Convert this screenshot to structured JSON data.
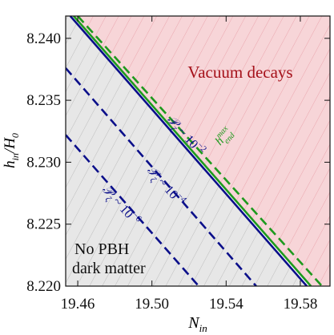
{
  "chart_data": {
    "type": "line",
    "xlabel": {
      "main": "N",
      "sub": "in"
    },
    "ylabel": {
      "main": "h",
      "sub": "in",
      "rest": "/H",
      "sub2": "0"
    },
    "xlim": [
      19.4535,
      19.596
    ],
    "ylim": [
      8.22,
      8.2418
    ],
    "xticks": [
      19.46,
      {
        "value": 19.5,
        "label": "19.50"
      },
      19.54,
      19.58
    ],
    "yticks": [
      {
        "value": 8.22,
        "label": "8.220"
      },
      8.225,
      {
        "value": 8.23,
        "label": "8.230"
      },
      8.235,
      {
        "value": 8.24,
        "label": "8.240"
      }
    ],
    "series": [
      {
        "color": "#0b0f8a",
        "dash": false,
        "x": [
          19.456,
          19.5835
        ],
        "values": [
          8.2418,
          8.22
        ]
      },
      {
        "color": "#1e9a1e",
        "dash": false,
        "x": [
          19.4578,
          19.5857
        ],
        "values": [
          8.2418,
          8.22
        ]
      },
      {
        "color": "#1e9a1e",
        "dash": true,
        "x": [
          19.46,
          19.5917
        ],
        "values": [
          8.2418,
          8.22
        ]
      },
      {
        "color": "#0b0f8a",
        "dash": true,
        "x": [
          19.4535,
          19.5562
        ],
        "values": [
          8.2376,
          8.22
        ]
      },
      {
        "color": "#0b0f8a",
        "dash": true,
        "x": [
          19.4535,
          19.5252
        ],
        "values": [
          8.2322,
          8.22
        ]
      }
    ],
    "annotations": {
      "upper_region": "Vacuum decays",
      "lower_region": [
        "No PBH",
        "dark matter"
      ],
      "boundary": {
        "main": "h",
        "sub": "end",
        "sup": "max"
      },
      "curves": [
        {
          "main": "𝒫",
          "sub": "ζ",
          "rest": " ~ 10",
          "sup": "−2"
        },
        {
          "main": "𝒫",
          "sub": "ζ",
          "rest": " ~ 10",
          "sup": "−4"
        },
        {
          "main": "𝒫",
          "sub": "ζ",
          "rest": " ~ 10",
          "sup": "−6"
        }
      ]
    }
  }
}
